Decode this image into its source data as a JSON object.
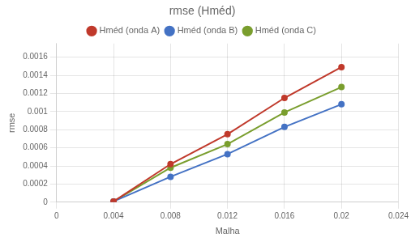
{
  "chart_data": {
    "type": "line",
    "title": "rmse (Hméd)",
    "xlabel": "Malha",
    "ylabel": "rmse",
    "x": [
      0.004,
      0.008,
      0.012,
      0.016,
      0.02
    ],
    "series": [
      {
        "name": "Hméd (onda A)",
        "color": "#c0392b",
        "marker": "circle",
        "values": [
          8e-06,
          0.00042,
          0.00075,
          0.00115,
          0.00149
        ]
      },
      {
        "name": "Hméd (onda B)",
        "color": "#4472c4",
        "marker": "circle",
        "values": [
          8e-06,
          0.00028,
          0.00053,
          0.00083,
          0.00108
        ]
      },
      {
        "name": "Hméd (onda C)",
        "color": "#7a9e2e",
        "marker": "circle",
        "values": [
          8e-06,
          0.00038,
          0.00064,
          0.00099,
          0.00127
        ]
      }
    ],
    "xlim": [
      0,
      0.024
    ],
    "ylim": [
      0,
      0.00175
    ],
    "xticks": [
      0,
      0.004,
      0.008,
      0.012,
      0.016,
      0.02,
      0.024
    ],
    "yticks": [
      0,
      0.0002,
      0.0004,
      0.0006,
      0.0008,
      0.001,
      0.0012,
      0.0014,
      0.0016
    ],
    "grid": true,
    "legend": "top"
  }
}
